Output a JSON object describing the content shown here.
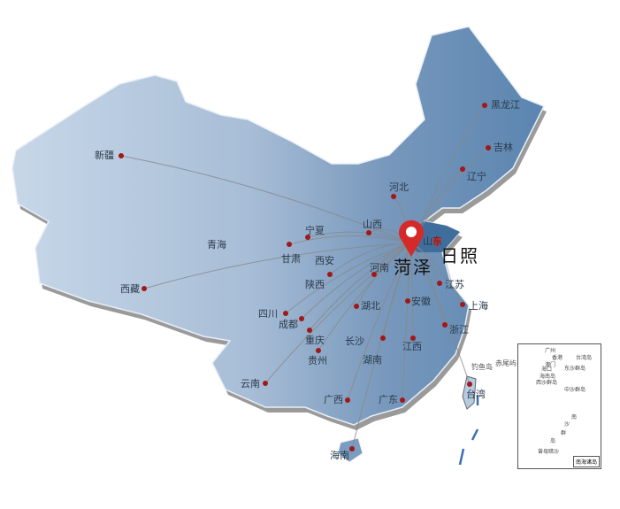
{
  "map": {
    "origin": {
      "name": "菏泽",
      "marker_color": "#d42a2a"
    },
    "secondary": {
      "name": "日照"
    },
    "provinces": [
      "新疆",
      "青海",
      "西藏",
      "甘肃",
      "宁夏",
      "西安",
      "陕西",
      "山西",
      "河北",
      "辽宁",
      "吉林",
      "黑龙江",
      "河南",
      "山东",
      "江苏",
      "安徽",
      "上海",
      "浙江",
      "湖北",
      "四川",
      "成都",
      "重庆",
      "贵州",
      "长沙",
      "湖南",
      "江西",
      "云南",
      "广西",
      "广东",
      "台湾",
      "海南"
    ],
    "islands": [
      "钓鱼岛",
      "赤尾屿"
    ],
    "inset": {
      "labels": [
        "广州",
        "香港",
        "澳门",
        "台湾岛",
        "海口",
        "海南岛",
        "东沙群岛",
        "西沙群岛",
        "中沙群岛",
        "南",
        "沙",
        "群",
        "岛",
        "曾母暗沙"
      ],
      "legend": "南海诸岛"
    },
    "colors": {
      "west": "#c7d7e8",
      "central": "#8ea9c6",
      "east": "#5a85b0",
      "dot": "#a01818",
      "line": "#888888"
    }
  }
}
